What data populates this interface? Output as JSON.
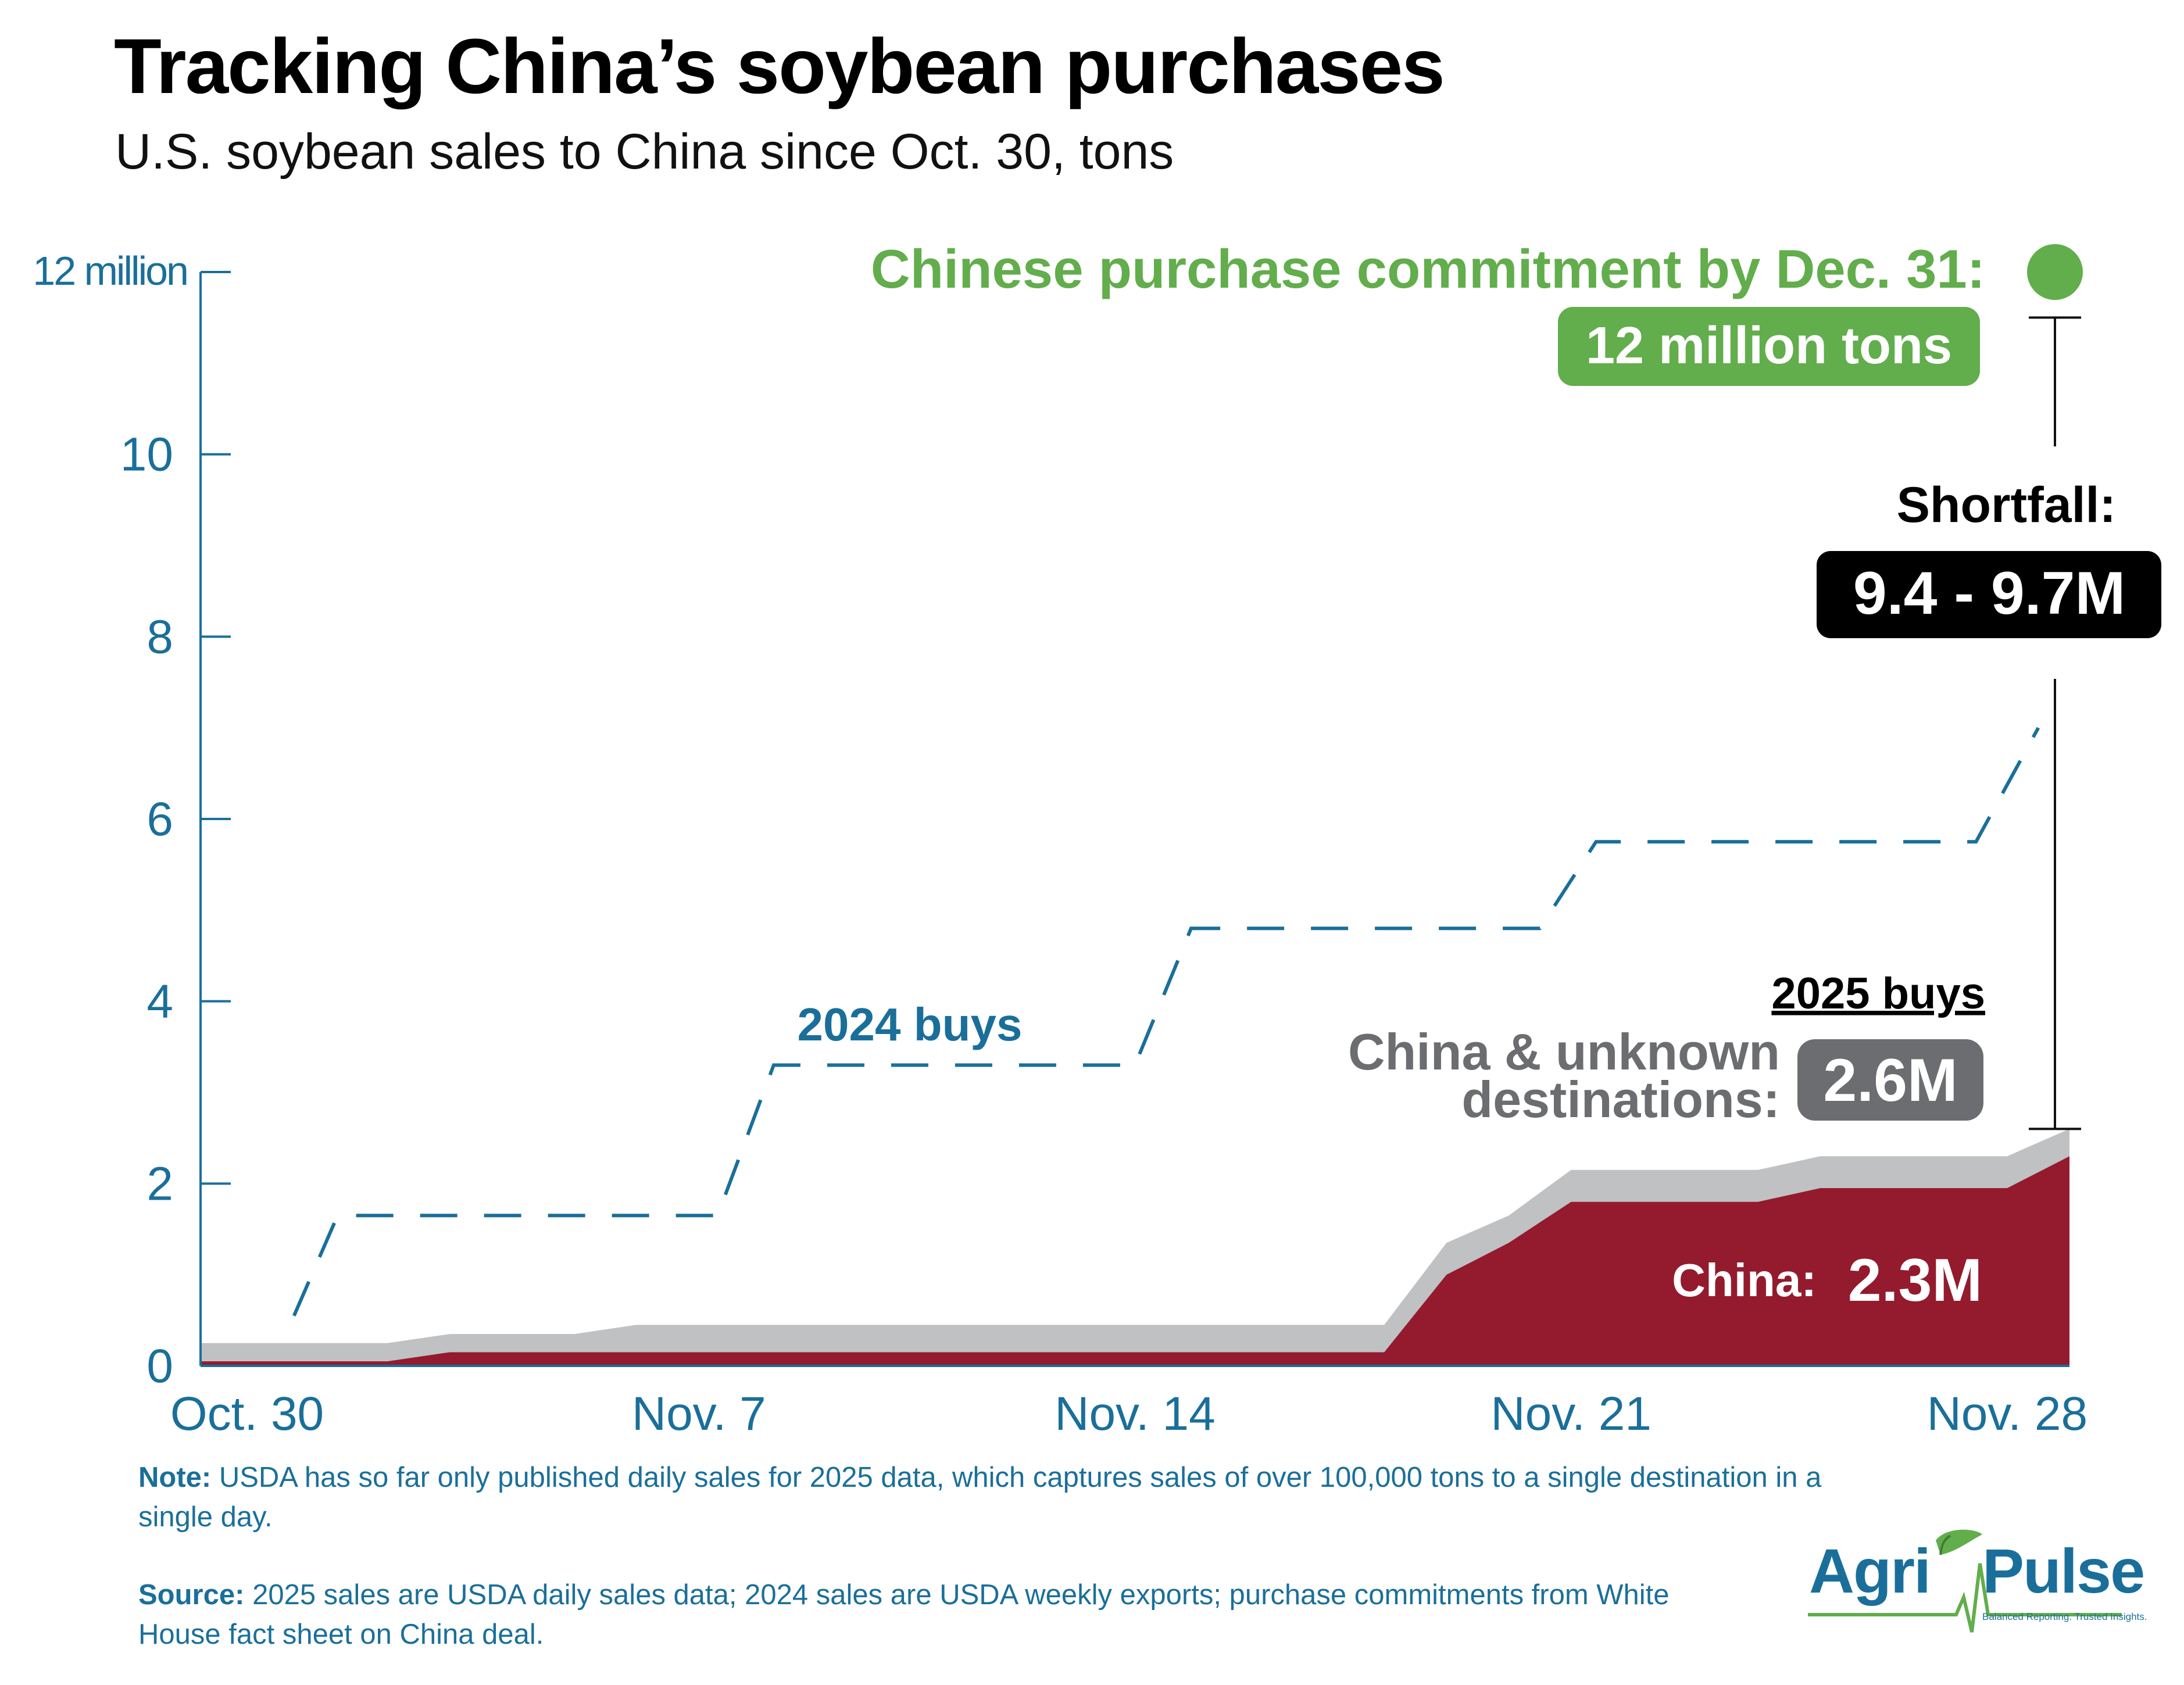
{
  "title": "Tracking China’s soybean purchases",
  "subtitle": "U.S. soybean sales to China since Oct. 30, tons",
  "chart_data": {
    "type": "area",
    "y_axis": {
      "ylim": [
        0,
        12
      ],
      "ticks": [
        0,
        2,
        4,
        6,
        8,
        10,
        12
      ],
      "tick_labels": [
        "0",
        "2",
        "4",
        "6",
        "8",
        "10",
        "12 million"
      ]
    },
    "x_axis": {
      "xlim": [
        0,
        30
      ],
      "ticks": [
        {
          "x": 0,
          "label": "Oct. 30"
        },
        {
          "x": 8,
          "label": "Nov. 7"
        },
        {
          "x": 15,
          "label": "Nov. 14"
        },
        {
          "x": 22,
          "label": "Nov. 21"
        },
        {
          "x": 29,
          "label": "Nov. 28"
        }
      ]
    },
    "series": [
      {
        "name": "China & unknown destinations",
        "color": "#c0c1c3",
        "points": [
          [
            0,
            0.25
          ],
          [
            3,
            0.25
          ],
          [
            4,
            0.35
          ],
          [
            6,
            0.35
          ],
          [
            7,
            0.45
          ],
          [
            19,
            0.45
          ],
          [
            20,
            1.35
          ],
          [
            21,
            1.65
          ],
          [
            22,
            2.15
          ],
          [
            25,
            2.15
          ],
          [
            26,
            2.3
          ],
          [
            29,
            2.3
          ],
          [
            30,
            2.6
          ]
        ]
      },
      {
        "name": "China",
        "color": "#941a2e",
        "points": [
          [
            0,
            0.05
          ],
          [
            3,
            0.05
          ],
          [
            4,
            0.15
          ],
          [
            19,
            0.15
          ],
          [
            20,
            1.0
          ],
          [
            21,
            1.35
          ],
          [
            22,
            1.8
          ],
          [
            25,
            1.8
          ],
          [
            26,
            1.95
          ],
          [
            29,
            1.95
          ],
          [
            30,
            2.3
          ]
        ]
      },
      {
        "name": "2024 buys",
        "color": "#1a6f9a",
        "style": "dashed",
        "points": [
          [
            1.5,
            0.55
          ],
          [
            2.2,
            1.65
          ],
          [
            8.3,
            1.65
          ],
          [
            9.2,
            3.3
          ],
          [
            15,
            3.3
          ],
          [
            15.9,
            4.8
          ],
          [
            21.5,
            4.8
          ],
          [
            22.4,
            5.75
          ],
          [
            28.5,
            5.75
          ],
          [
            29.5,
            7.0
          ]
        ]
      }
    ],
    "commitment": {
      "value": 12,
      "color": "#62ad4c"
    },
    "shortfall_bracket": {
      "from": 2.6,
      "to": 11.5
    },
    "annotations": {
      "commitment_label": "Chinese purchase commitment by Dec. 31:",
      "commitment_value": "12 million tons",
      "shortfall_label": "Shortfall:",
      "shortfall_value": "9.4 - 9.7M",
      "buys_2025_label": "2025 buys",
      "china_unknown_label_1": "China & unknown",
      "china_unknown_label_2": "destinations:",
      "china_unknown_value": "2.6M",
      "china_label": "China:",
      "china_value": "2.3M",
      "buys_2024_label": "2024 buys"
    }
  },
  "colors": {
    "accent_blue": "#1a6f9a",
    "china_red": "#941a2e",
    "unknown_gray": "#c0c1c3",
    "commit_green": "#62ad4c",
    "badge_gray": "#6c6d70"
  },
  "notes": {
    "note_label": "Note:",
    "note_text": "USDA has so far only published daily sales for 2025 data, which captures sales of over 100,000 tons to a single destination in a single day.",
    "source_label": "Source:",
    "source_text": "2025 sales are USDA daily sales data; 2024 sales are USDA weekly exports; purchase commitments from White House fact sheet on China deal."
  },
  "logo": {
    "left": "Agri",
    "right": "Pulse",
    "tagline": "Balanced Reporting. Trusted Insights."
  }
}
